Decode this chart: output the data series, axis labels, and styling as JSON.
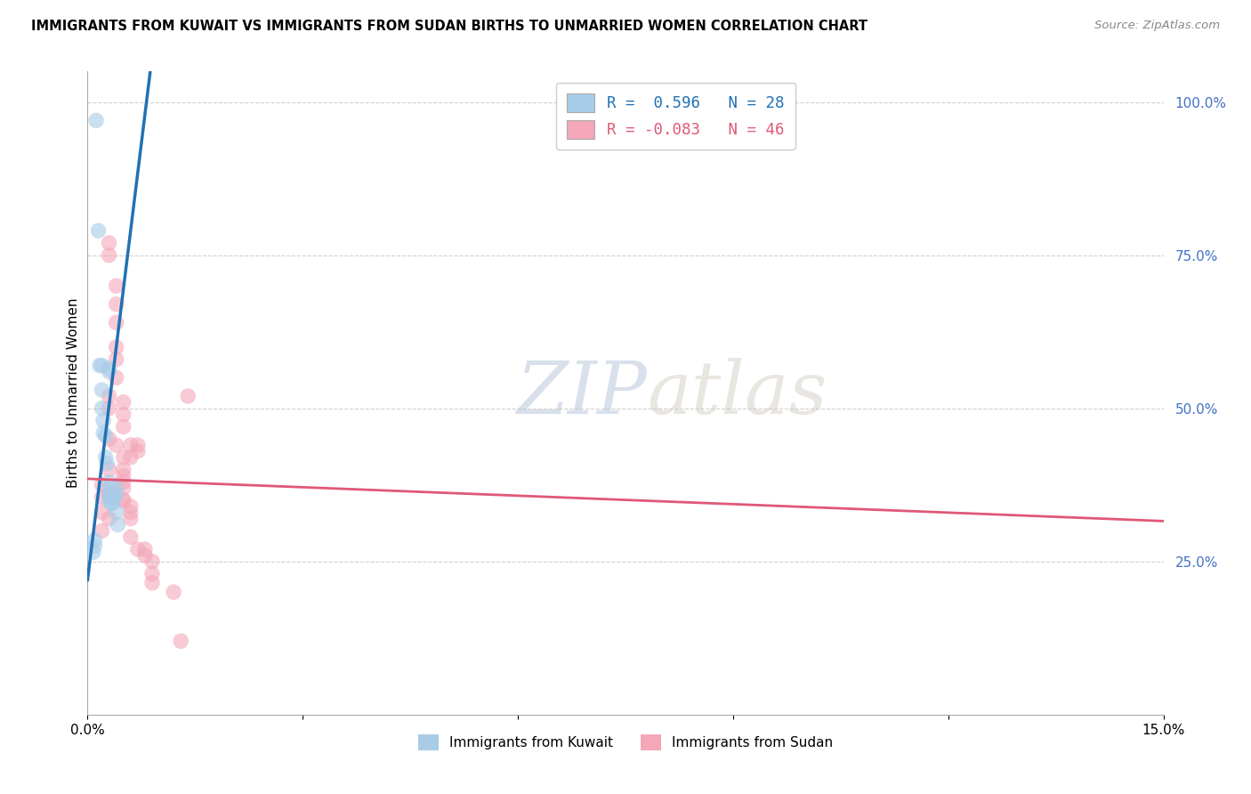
{
  "title": "IMMIGRANTS FROM KUWAIT VS IMMIGRANTS FROM SUDAN BIRTHS TO UNMARRIED WOMEN CORRELATION CHART",
  "source": "Source: ZipAtlas.com",
  "ylabel": "Births to Unmarried Women",
  "xlim": [
    0.0,
    0.15
  ],
  "ylim": [
    0.0,
    1.05
  ],
  "x_ticks": [
    0.0,
    0.03,
    0.06,
    0.09,
    0.12,
    0.15
  ],
  "x_tick_labels": [
    "0.0%",
    "",
    "",
    "",
    "",
    "15.0%"
  ],
  "y_ticks_right": [
    0.25,
    0.5,
    0.75,
    1.0
  ],
  "y_tick_labels_right": [
    "25.0%",
    "50.0%",
    "75.0%",
    "100.0%"
  ],
  "watermark_zip": "ZIP",
  "watermark_atlas": "atlas",
  "legend1_row1": "R =  0.596   N = 28",
  "legend1_row2": "R = -0.083   N = 46",
  "legend2_labels": [
    "Immigrants from Kuwait",
    "Immigrants from Sudan"
  ],
  "kuwait_x": [
    0.0012,
    0.0015,
    0.0017,
    0.002,
    0.002,
    0.002,
    0.0022,
    0.0022,
    0.0025,
    0.0025,
    0.0027,
    0.003,
    0.003,
    0.003,
    0.003,
    0.003,
    0.003,
    0.0033,
    0.0033,
    0.0035,
    0.0037,
    0.004,
    0.004,
    0.004,
    0.0042,
    0.001,
    0.001,
    0.0008
  ],
  "kuwait_y": [
    0.97,
    0.79,
    0.57,
    0.57,
    0.53,
    0.5,
    0.48,
    0.46,
    0.455,
    0.42,
    0.41,
    0.565,
    0.56,
    0.38,
    0.37,
    0.36,
    0.35,
    0.355,
    0.345,
    0.345,
    0.355,
    0.37,
    0.36,
    0.33,
    0.31,
    0.285,
    0.275,
    0.265
  ],
  "sudan_x": [
    0.002,
    0.002,
    0.002,
    0.002,
    0.003,
    0.003,
    0.003,
    0.003,
    0.003,
    0.003,
    0.003,
    0.003,
    0.004,
    0.004,
    0.004,
    0.004,
    0.004,
    0.004,
    0.004,
    0.005,
    0.005,
    0.005,
    0.005,
    0.005,
    0.005,
    0.005,
    0.005,
    0.005,
    0.005,
    0.006,
    0.006,
    0.006,
    0.006,
    0.006,
    0.006,
    0.007,
    0.007,
    0.007,
    0.008,
    0.008,
    0.009,
    0.009,
    0.013,
    0.014,
    0.009,
    0.012
  ],
  "sudan_y": [
    0.375,
    0.355,
    0.33,
    0.3,
    0.77,
    0.75,
    0.52,
    0.5,
    0.45,
    0.4,
    0.36,
    0.32,
    0.7,
    0.67,
    0.64,
    0.6,
    0.58,
    0.55,
    0.44,
    0.51,
    0.49,
    0.47,
    0.42,
    0.4,
    0.39,
    0.38,
    0.37,
    0.35,
    0.35,
    0.44,
    0.42,
    0.34,
    0.33,
    0.32,
    0.29,
    0.44,
    0.43,
    0.27,
    0.27,
    0.26,
    0.25,
    0.23,
    0.12,
    0.52,
    0.215,
    0.2
  ],
  "background_color": "#ffffff",
  "grid_color": "#d0d0d0",
  "blue_dot_color": "#a8cce8",
  "pink_dot_color": "#f4a7b9",
  "blue_line_color": "#2171b5",
  "pink_line_color": "#e05878",
  "dot_size": 160,
  "dot_alpha": 0.6,
  "blue_slope": 95.0,
  "blue_intercept": 0.22,
  "sudan_slope": -0.46,
  "sudan_intercept": 0.385
}
